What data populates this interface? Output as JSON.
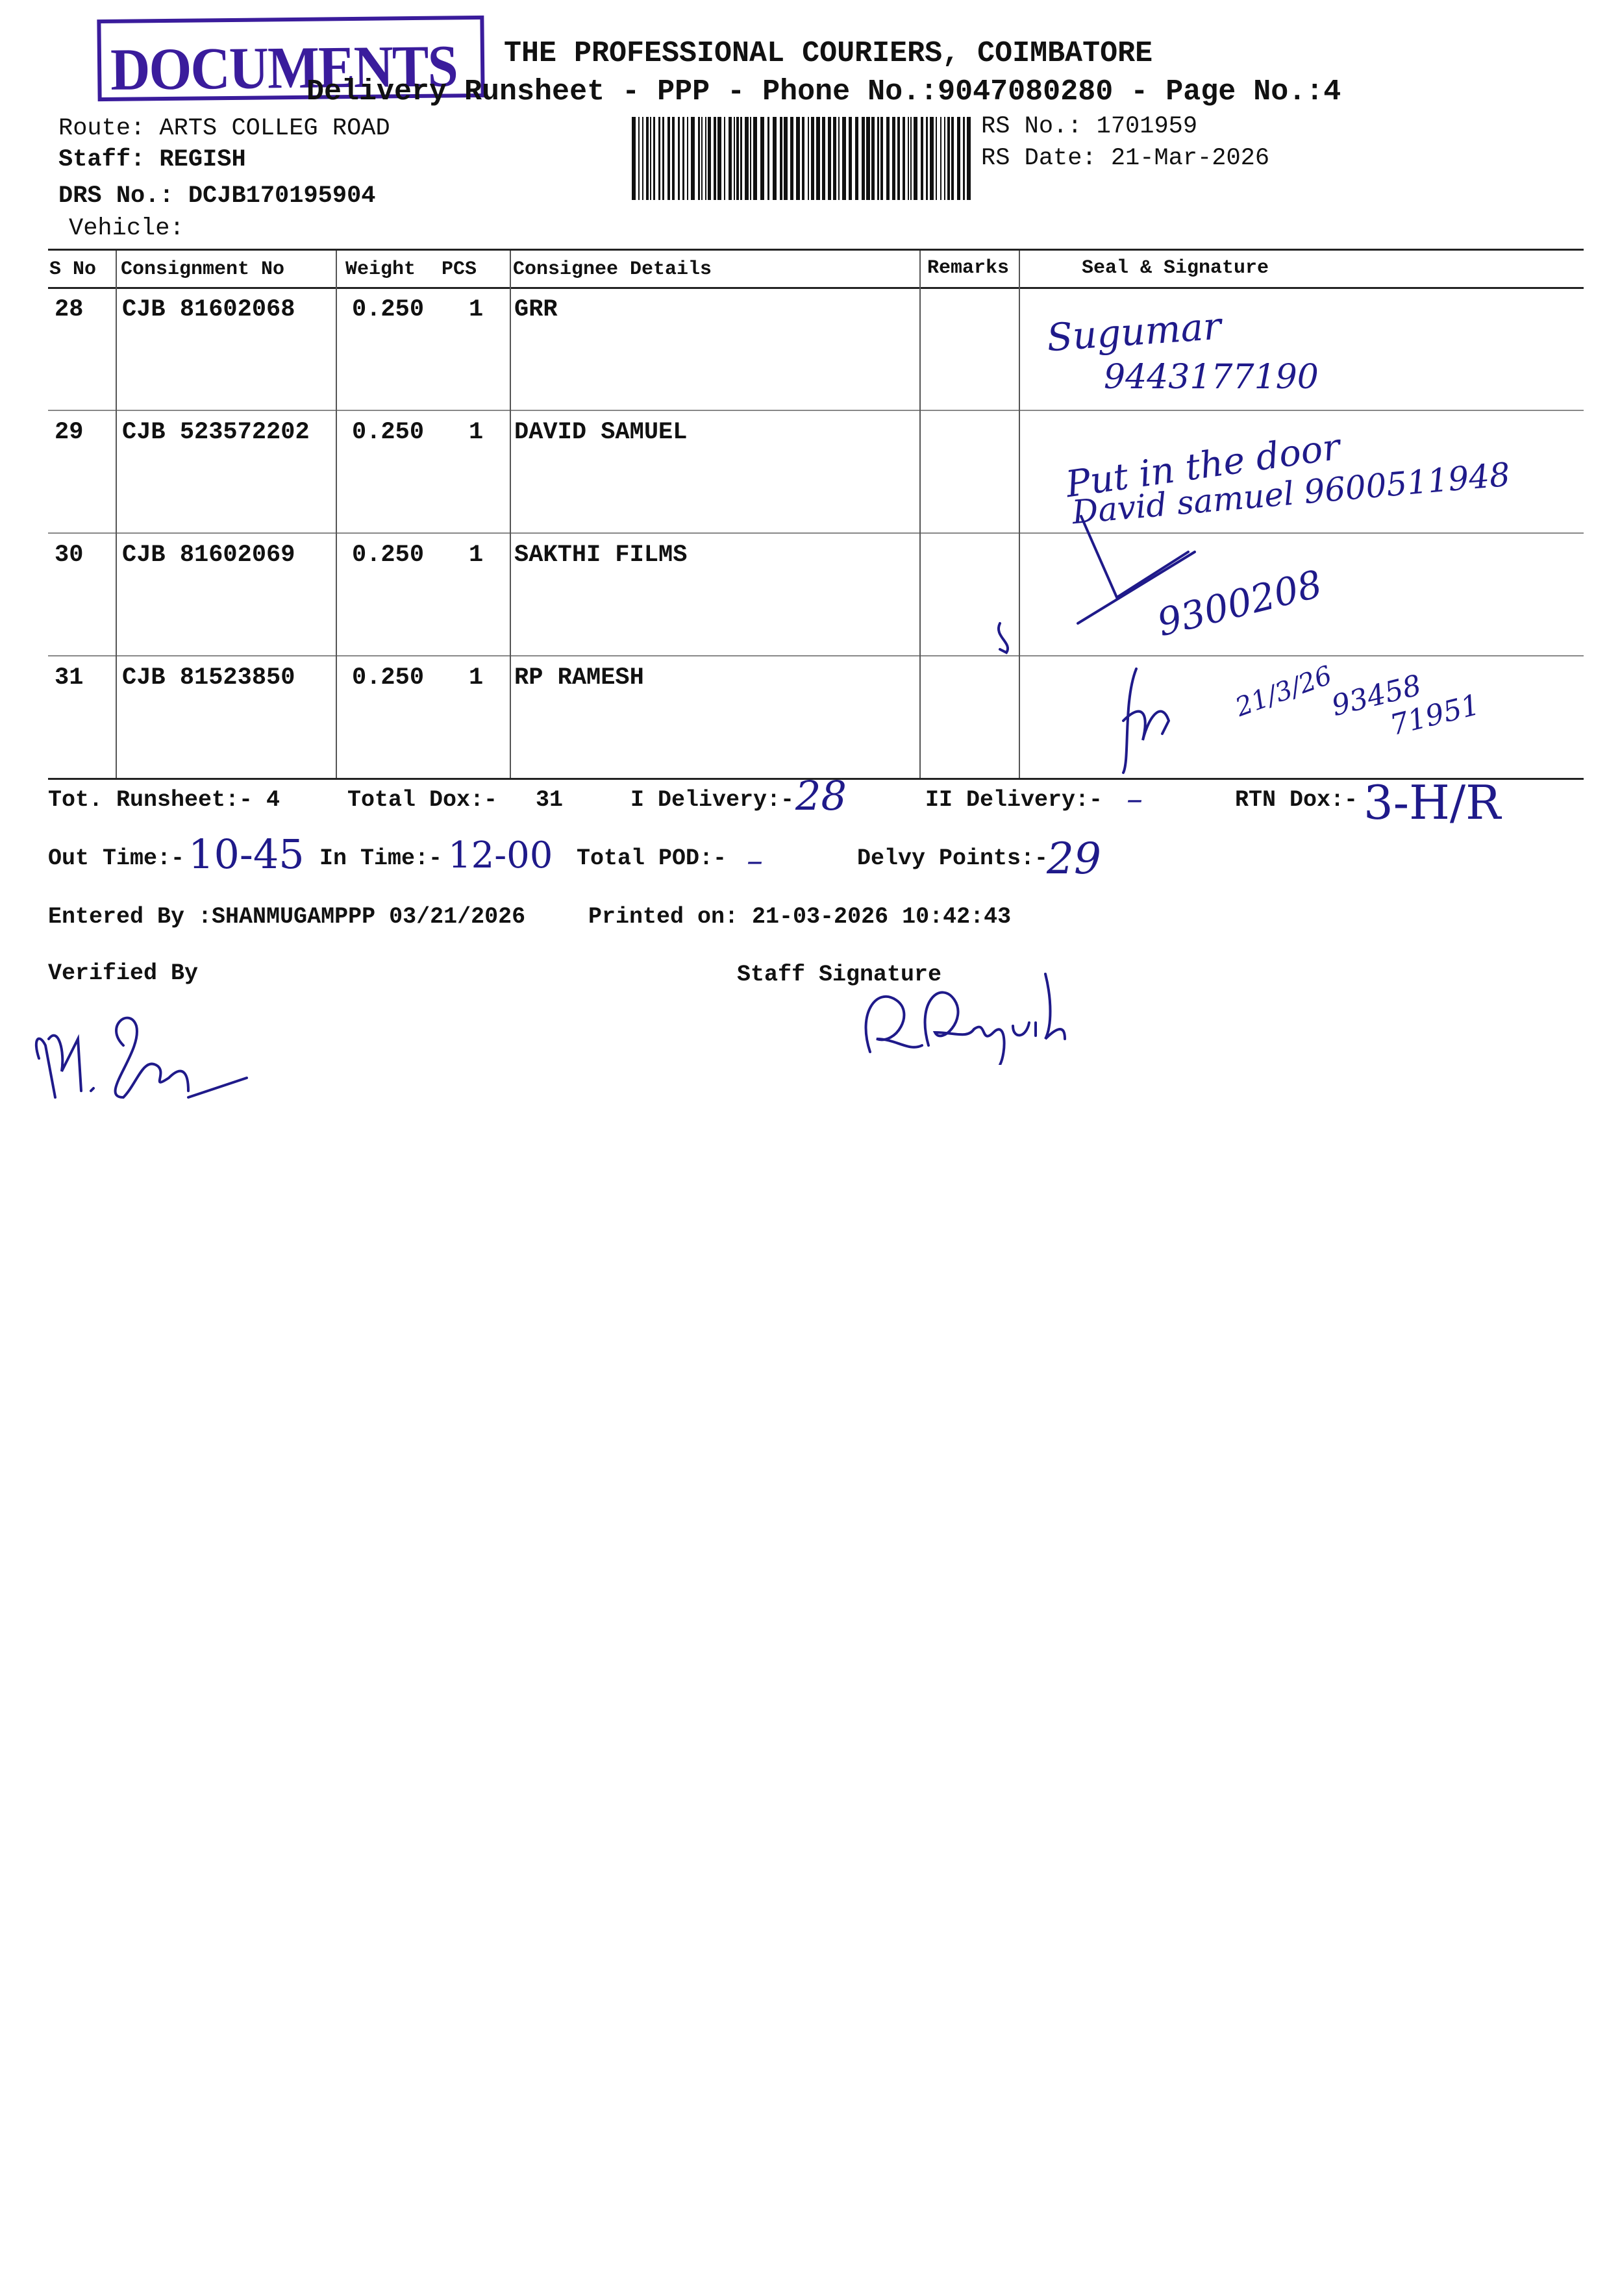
{
  "stamp": {
    "text": "DOCUMENTS",
    "color": "#3a1c9c"
  },
  "header": {
    "company": "THE PROFESSIONAL COURIERS, COIMBATORE",
    "subtitle": "Delivery Runsheet - PPP - Phone No.:9047080280 - Page No.:4",
    "route": "Route: ARTS COLLEG ROAD",
    "staff": "Staff: REGISH",
    "drs": "DRS No.: DCJB170195904",
    "vehicle": "Vehicle:",
    "rs_no": "RS No.: 1701959",
    "rs_date": "RS Date: 21-Mar-2026"
  },
  "table": {
    "columns": [
      "S No",
      "Consignment No",
      "Weight",
      "PCS",
      "Consignee Details",
      "Remarks",
      "Seal & Signature"
    ],
    "rows": [
      {
        "sno": "28",
        "consignment": "CJB 81602068",
        "weight": "0.250",
        "pcs": "1",
        "consignee": "GRR",
        "signature": [
          "Sugumar",
          "9443177190"
        ]
      },
      {
        "sno": "29",
        "consignment": "CJB 523572202",
        "weight": "0.250",
        "pcs": "1",
        "consignee": "DAVID SAMUEL",
        "signature": [
          "Put in the door",
          "David samuel 9600511948"
        ]
      },
      {
        "sno": "30",
        "consignment": "CJB 81602069",
        "weight": "0.250",
        "pcs": "1",
        "consignee": "SAKTHI FILMS",
        "signature": [
          "9300208"
        ]
      },
      {
        "sno": "31",
        "consignment": "CJB 81523850",
        "weight": "0.250",
        "pcs": "1",
        "consignee": "RP RAMESH",
        "signature": [
          "21/3/26",
          "93458",
          "71951"
        ]
      }
    ]
  },
  "summary": {
    "tot_runsheet": "Tot. Runsheet:- 4",
    "total_dox_label": "Total Dox:-",
    "total_dox": "31",
    "i_delivery_label": "I Delivery:-",
    "i_delivery": "28",
    "ii_delivery_label": "II Delivery:-",
    "ii_delivery": "–",
    "rtn_dox_label": "RTN Dox:-",
    "rtn_dox": "3-H/R",
    "out_time_label": "Out Time:-",
    "out_time": "10-45",
    "in_time_label": "In Time:-",
    "in_time": "12-00",
    "total_pod_label": "Total POD:-",
    "total_pod": "–",
    "delvy_points_label": "Delvy Points:-",
    "delvy_points": "29",
    "entered_by": "Entered By :SHANMUGAMPPP 03/21/2026",
    "printed_on": "Printed on: 21-03-2026 10:42:43",
    "verified_by": "Verified By",
    "staff_signature": "Staff Signature"
  },
  "ink_color": "#1f1a8a"
}
